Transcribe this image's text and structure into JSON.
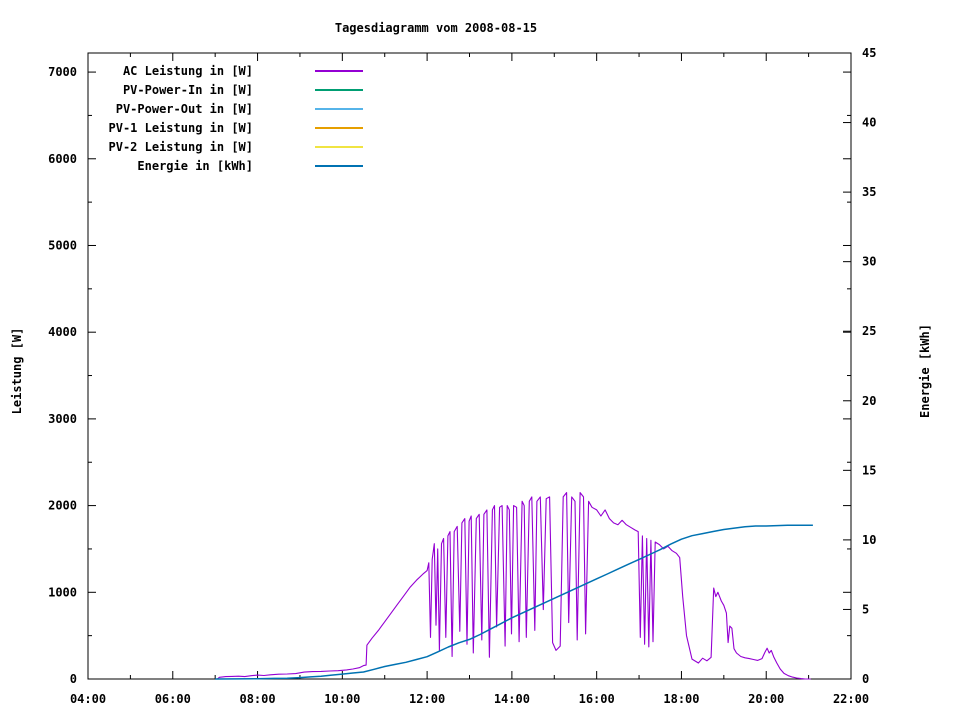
{
  "title": "Tagesdiagramm vom 2008-08-15",
  "axes": {
    "y1_label": "Leistung [W]",
    "y2_label": "Energie [kWh]"
  },
  "legend": {
    "position": "top-left",
    "items": [
      {
        "id": "ac-leistung",
        "label": "AC Leistung in [W]",
        "color": "#9400d3"
      },
      {
        "id": "pv-power-in",
        "label": "PV-Power-In in [W]",
        "color": "#009e73"
      },
      {
        "id": "pv-power-out",
        "label": "PV-Power-Out in [W]",
        "color": "#56b4e9"
      },
      {
        "id": "pv1-leistung",
        "label": "PV-1 Leistung in [W]",
        "color": "#e69f00"
      },
      {
        "id": "pv2-leistung",
        "label": "PV-2 Leistung in [W]",
        "color": "#f0e442"
      },
      {
        "id": "energie",
        "label": "Energie in [kWh]",
        "color": "#0072b2"
      }
    ]
  },
  "chart_data": {
    "type": "line",
    "title": "Tagesdiagramm vom 2008-08-15",
    "grid": false,
    "legend_position": "top-left",
    "x_axis": {
      "range_hours": [
        4,
        22
      ],
      "major_ticks": [
        4,
        6,
        8,
        10,
        12,
        14,
        16,
        18,
        20,
        22
      ],
      "major_tick_labels": [
        "04:00",
        "06:00",
        "08:00",
        "10:00",
        "12:00",
        "14:00",
        "16:00",
        "18:00",
        "20:00",
        "22:00"
      ],
      "minor_ticks": [
        5,
        7,
        9,
        11,
        13,
        15,
        17,
        19,
        21
      ]
    },
    "y1_axis": {
      "label": "Leistung [W]",
      "range": [
        0,
        7220
      ],
      "major_ticks": [
        0,
        1000,
        2000,
        3000,
        4000,
        5000,
        6000,
        7000
      ],
      "major_tick_labels": [
        "0",
        "1000",
        "2000",
        "3000",
        "4000",
        "5000",
        "6000",
        "7000"
      ],
      "minor_ticks": [
        500,
        1500,
        2500,
        3500,
        4500,
        5500,
        6500
      ]
    },
    "y2_axis": {
      "label": "Energie [kWh]",
      "range": [
        0,
        45
      ],
      "major_ticks": [
        0,
        5,
        10,
        15,
        20,
        25,
        30,
        35,
        40,
        45
      ],
      "major_tick_labels": [
        "0",
        "5",
        "10",
        "15",
        "20",
        "25",
        "30",
        "35",
        "40",
        "45"
      ]
    },
    "series": [
      {
        "id": "ac-leistung",
        "name": "AC Leistung in [W]",
        "color": "#9400d3",
        "axis": "y1",
        "width": 1.1,
        "points": [
          [
            7.05,
            0
          ],
          [
            7.1,
            20
          ],
          [
            7.25,
            28
          ],
          [
            7.4,
            30
          ],
          [
            7.55,
            32
          ],
          [
            7.7,
            28
          ],
          [
            7.85,
            38
          ],
          [
            8.0,
            45
          ],
          [
            8.15,
            40
          ],
          [
            8.3,
            48
          ],
          [
            8.5,
            55
          ],
          [
            8.7,
            58
          ],
          [
            8.9,
            62
          ],
          [
            9.1,
            80
          ],
          [
            9.3,
            85
          ],
          [
            9.5,
            88
          ],
          [
            9.7,
            92
          ],
          [
            9.9,
            96
          ],
          [
            10.1,
            105
          ],
          [
            10.25,
            115
          ],
          [
            10.4,
            130
          ],
          [
            10.5,
            155
          ],
          [
            10.56,
            160
          ],
          [
            10.58,
            390
          ],
          [
            10.7,
            470
          ],
          [
            10.85,
            560
          ],
          [
            11.0,
            660
          ],
          [
            11.15,
            760
          ],
          [
            11.3,
            860
          ],
          [
            11.45,
            960
          ],
          [
            11.6,
            1060
          ],
          [
            11.75,
            1140
          ],
          [
            11.9,
            1210
          ],
          [
            12.0,
            1250
          ],
          [
            12.04,
            1340
          ],
          [
            12.08,
            480
          ],
          [
            12.12,
            1380
          ],
          [
            12.17,
            1560
          ],
          [
            12.21,
            620
          ],
          [
            12.25,
            1500
          ],
          [
            12.29,
            330
          ],
          [
            12.34,
            1560
          ],
          [
            12.39,
            1620
          ],
          [
            12.44,
            480
          ],
          [
            12.49,
            1650
          ],
          [
            12.54,
            1700
          ],
          [
            12.59,
            260
          ],
          [
            12.64,
            1700
          ],
          [
            12.71,
            1760
          ],
          [
            12.77,
            550
          ],
          [
            12.82,
            1800
          ],
          [
            12.89,
            1850
          ],
          [
            12.94,
            400
          ],
          [
            12.99,
            1820
          ],
          [
            13.04,
            1880
          ],
          [
            13.09,
            300
          ],
          [
            13.16,
            1850
          ],
          [
            13.23,
            1900
          ],
          [
            13.29,
            450
          ],
          [
            13.34,
            1900
          ],
          [
            13.41,
            1950
          ],
          [
            13.47,
            250
          ],
          [
            13.54,
            1950
          ],
          [
            13.59,
            2000
          ],
          [
            13.64,
            600
          ],
          [
            13.71,
            1980
          ],
          [
            13.77,
            2000
          ],
          [
            13.84,
            380
          ],
          [
            13.89,
            2000
          ],
          [
            13.94,
            1950
          ],
          [
            13.99,
            520
          ],
          [
            14.04,
            2000
          ],
          [
            14.11,
            1980
          ],
          [
            14.17,
            430
          ],
          [
            14.24,
            2050
          ],
          [
            14.29,
            2000
          ],
          [
            14.34,
            480
          ],
          [
            14.41,
            2050
          ],
          [
            14.47,
            2100
          ],
          [
            14.54,
            560
          ],
          [
            14.59,
            2050
          ],
          [
            14.67,
            2100
          ],
          [
            14.74,
            800
          ],
          [
            14.81,
            2080
          ],
          [
            14.89,
            2100
          ],
          [
            14.96,
            420
          ],
          [
            15.04,
            330
          ],
          [
            15.14,
            380
          ],
          [
            15.21,
            2100
          ],
          [
            15.29,
            2150
          ],
          [
            15.34,
            650
          ],
          [
            15.41,
            2100
          ],
          [
            15.49,
            2050
          ],
          [
            15.54,
            450
          ],
          [
            15.61,
            2150
          ],
          [
            15.69,
            2100
          ],
          [
            15.74,
            520
          ],
          [
            15.81,
            2050
          ],
          [
            15.89,
            1980
          ],
          [
            16.0,
            1950
          ],
          [
            16.1,
            1880
          ],
          [
            16.2,
            1950
          ],
          [
            16.3,
            1850
          ],
          [
            16.4,
            1800
          ],
          [
            16.5,
            1780
          ],
          [
            16.6,
            1830
          ],
          [
            16.7,
            1780
          ],
          [
            16.8,
            1750
          ],
          [
            16.9,
            1720
          ],
          [
            16.98,
            1700
          ],
          [
            17.03,
            480
          ],
          [
            17.08,
            1650
          ],
          [
            17.13,
            400
          ],
          [
            17.18,
            1620
          ],
          [
            17.23,
            370
          ],
          [
            17.28,
            1600
          ],
          [
            17.33,
            430
          ],
          [
            17.38,
            1580
          ],
          [
            17.48,
            1550
          ],
          [
            17.58,
            1500
          ],
          [
            17.68,
            1530
          ],
          [
            17.78,
            1480
          ],
          [
            17.88,
            1450
          ],
          [
            17.96,
            1400
          ],
          [
            18.03,
            950
          ],
          [
            18.12,
            500
          ],
          [
            18.25,
            230
          ],
          [
            18.4,
            185
          ],
          [
            18.5,
            240
          ],
          [
            18.6,
            210
          ],
          [
            18.7,
            250
          ],
          [
            18.76,
            1050
          ],
          [
            18.81,
            950
          ],
          [
            18.86,
            1000
          ],
          [
            18.94,
            900
          ],
          [
            19.0,
            850
          ],
          [
            19.06,
            760
          ],
          [
            19.1,
            420
          ],
          [
            19.14,
            610
          ],
          [
            19.19,
            585
          ],
          [
            19.24,
            350
          ],
          [
            19.3,
            300
          ],
          [
            19.4,
            260
          ],
          [
            19.5,
            245
          ],
          [
            19.6,
            235
          ],
          [
            19.7,
            225
          ],
          [
            19.8,
            215
          ],
          [
            19.9,
            235
          ],
          [
            19.97,
            310
          ],
          [
            20.02,
            355
          ],
          [
            20.07,
            300
          ],
          [
            20.12,
            330
          ],
          [
            20.18,
            250
          ],
          [
            20.25,
            185
          ],
          [
            20.33,
            115
          ],
          [
            20.42,
            65
          ],
          [
            20.52,
            38
          ],
          [
            20.62,
            22
          ],
          [
            20.72,
            12
          ],
          [
            20.82,
            5
          ],
          [
            20.92,
            0
          ],
          [
            21.05,
            0
          ]
        ]
      },
      {
        "id": "pv-power-in",
        "name": "PV-Power-In in [W]",
        "color": "#009e73",
        "axis": "y1",
        "width": 1.1,
        "points": []
      },
      {
        "id": "pv-power-out",
        "name": "PV-Power-Out in [W]",
        "color": "#56b4e9",
        "axis": "y1",
        "width": 1.1,
        "points": []
      },
      {
        "id": "pv1-leistung",
        "name": "PV-1 Leistung in [W]",
        "color": "#e69f00",
        "axis": "y1",
        "width": 1.1,
        "points": []
      },
      {
        "id": "pv2-leistung",
        "name": "PV-2 Leistung in [W]",
        "color": "#f0e442",
        "axis": "y1",
        "width": 1.1,
        "points": []
      },
      {
        "id": "energie",
        "name": "Energie in [kWh]",
        "color": "#0072b2",
        "axis": "y2",
        "width": 1.5,
        "points": [
          [
            7.0,
            0
          ],
          [
            7.5,
            0.01
          ],
          [
            8.0,
            0.02
          ],
          [
            8.4,
            0.04
          ],
          [
            8.7,
            0.06
          ],
          [
            9.0,
            0.1
          ],
          [
            9.25,
            0.15
          ],
          [
            9.5,
            0.2
          ],
          [
            9.75,
            0.28
          ],
          [
            10.0,
            0.35
          ],
          [
            10.25,
            0.43
          ],
          [
            10.5,
            0.5
          ],
          [
            10.75,
            0.7
          ],
          [
            11.0,
            0.9
          ],
          [
            11.25,
            1.05
          ],
          [
            11.5,
            1.2
          ],
          [
            11.75,
            1.4
          ],
          [
            12.0,
            1.6
          ],
          [
            12.25,
            1.95
          ],
          [
            12.5,
            2.3
          ],
          [
            12.75,
            2.6
          ],
          [
            13.0,
            2.85
          ],
          [
            13.25,
            3.2
          ],
          [
            13.5,
            3.6
          ],
          [
            13.75,
            4.0
          ],
          [
            14.0,
            4.4
          ],
          [
            14.25,
            4.75
          ],
          [
            14.5,
            5.1
          ],
          [
            14.75,
            5.45
          ],
          [
            15.0,
            5.8
          ],
          [
            15.25,
            6.15
          ],
          [
            15.5,
            6.5
          ],
          [
            15.75,
            6.85
          ],
          [
            16.0,
            7.2
          ],
          [
            16.25,
            7.55
          ],
          [
            16.5,
            7.9
          ],
          [
            16.75,
            8.25
          ],
          [
            17.0,
            8.6
          ],
          [
            17.25,
            8.95
          ],
          [
            17.5,
            9.3
          ],
          [
            17.75,
            9.7
          ],
          [
            18.0,
            10.05
          ],
          [
            18.25,
            10.3
          ],
          [
            18.5,
            10.45
          ],
          [
            18.75,
            10.6
          ],
          [
            19.0,
            10.75
          ],
          [
            19.25,
            10.85
          ],
          [
            19.5,
            10.95
          ],
          [
            19.75,
            11.0
          ],
          [
            20.0,
            11.0
          ],
          [
            20.5,
            11.05
          ],
          [
            21.0,
            11.05
          ],
          [
            21.1,
            11.05
          ]
        ]
      }
    ]
  }
}
